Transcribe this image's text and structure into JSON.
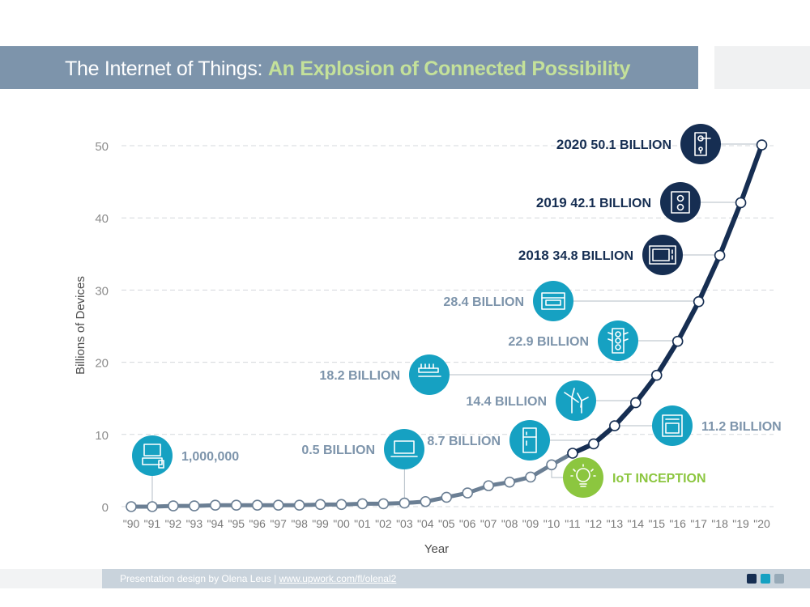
{
  "title": {
    "prefix": "The Internet of Things: ",
    "accent": "An Explosion of Connected Possibility"
  },
  "footer": {
    "credit": "Presentation design by Olena Leus | ",
    "link": "www.upwork.com/fl/olenal2"
  },
  "colors": {
    "navy": "#162e52",
    "teal": "#16a1c2",
    "green": "#8cc63f",
    "slate": "#7d94ab",
    "line_light": "#6b7f94",
    "nav": [
      "#162e52",
      "#16a1c2",
      "#97aab8"
    ]
  },
  "chart_data": {
    "type": "line",
    "title": "",
    "xlabel": "Year",
    "ylabel": "Billions of Devices",
    "ylim": [
      0,
      50
    ],
    "yticks": [
      0,
      10,
      20,
      30,
      40,
      50
    ],
    "grid": true,
    "x": [
      "\"90",
      "\"91",
      "\"92",
      "\"93",
      "\"94",
      "\"95",
      "\"96",
      "\"97",
      "\"98",
      "\"99",
      "\"00",
      "\"01",
      "\"02",
      "\"03",
      "\"04",
      "\"05",
      "\"06",
      "\"07",
      "\"08",
      "\"09",
      "\"10",
      "\"11",
      "\"12",
      "\"13",
      "\"14",
      "\"15",
      "\"16",
      "\"17",
      "\"18",
      "\"19",
      "\"20"
    ],
    "values": [
      0.001,
      0.001,
      0.1,
      0.1,
      0.2,
      0.2,
      0.2,
      0.2,
      0.2,
      0.3,
      0.3,
      0.4,
      0.4,
      0.5,
      0.7,
      1.3,
      1.9,
      2.9,
      3.4,
      4.1,
      5.8,
      7.4,
      8.7,
      11.2,
      14.4,
      18.2,
      22.9,
      28.4,
      34.8,
      42.1,
      50.1
    ],
    "annotations": [
      {
        "index": 1,
        "year_label": "",
        "value_label": "1,000,000",
        "icon": "computer-icon",
        "style": "teal"
      },
      {
        "index": 13,
        "year_label": "",
        "value_label": "0.5 BILLION",
        "icon": "laptop-icon",
        "style": "teal"
      },
      {
        "index": 20,
        "year_label": "",
        "value_label": "IoT INCEPTION",
        "icon": "lightbulb-icon",
        "style": "green"
      },
      {
        "index": 22,
        "year_label": "",
        "value_label": "8.7 BILLION",
        "icon": "fridge-icon",
        "style": "teal"
      },
      {
        "index": 23,
        "year_label": "",
        "value_label": "11.2 BILLION",
        "icon": "oven-icon",
        "style": "teal"
      },
      {
        "index": 24,
        "year_label": "",
        "value_label": "14.4 BILLION",
        "icon": "wind-turbine-icon",
        "style": "teal"
      },
      {
        "index": 25,
        "year_label": "",
        "value_label": "18.2 BILLION",
        "icon": "toothbrush-icon",
        "style": "teal"
      },
      {
        "index": 26,
        "year_label": "",
        "value_label": "22.9 BILLION",
        "icon": "traffic-light-icon",
        "style": "teal"
      },
      {
        "index": 27,
        "year_label": "",
        "value_label": "28.4 BILLION",
        "icon": "dishwasher-icon",
        "style": "teal"
      },
      {
        "index": 28,
        "year_label": "2018",
        "value_label": "34.8 BILLION",
        "icon": "microwave-icon",
        "style": "navy"
      },
      {
        "index": 29,
        "year_label": "2019",
        "value_label": "42.1 BILLION",
        "icon": "power-outlet-icon",
        "style": "navy"
      },
      {
        "index": 30,
        "year_label": "2020",
        "value_label": "50.1 BILLION",
        "icon": "door-lock-icon",
        "style": "navy"
      }
    ]
  }
}
